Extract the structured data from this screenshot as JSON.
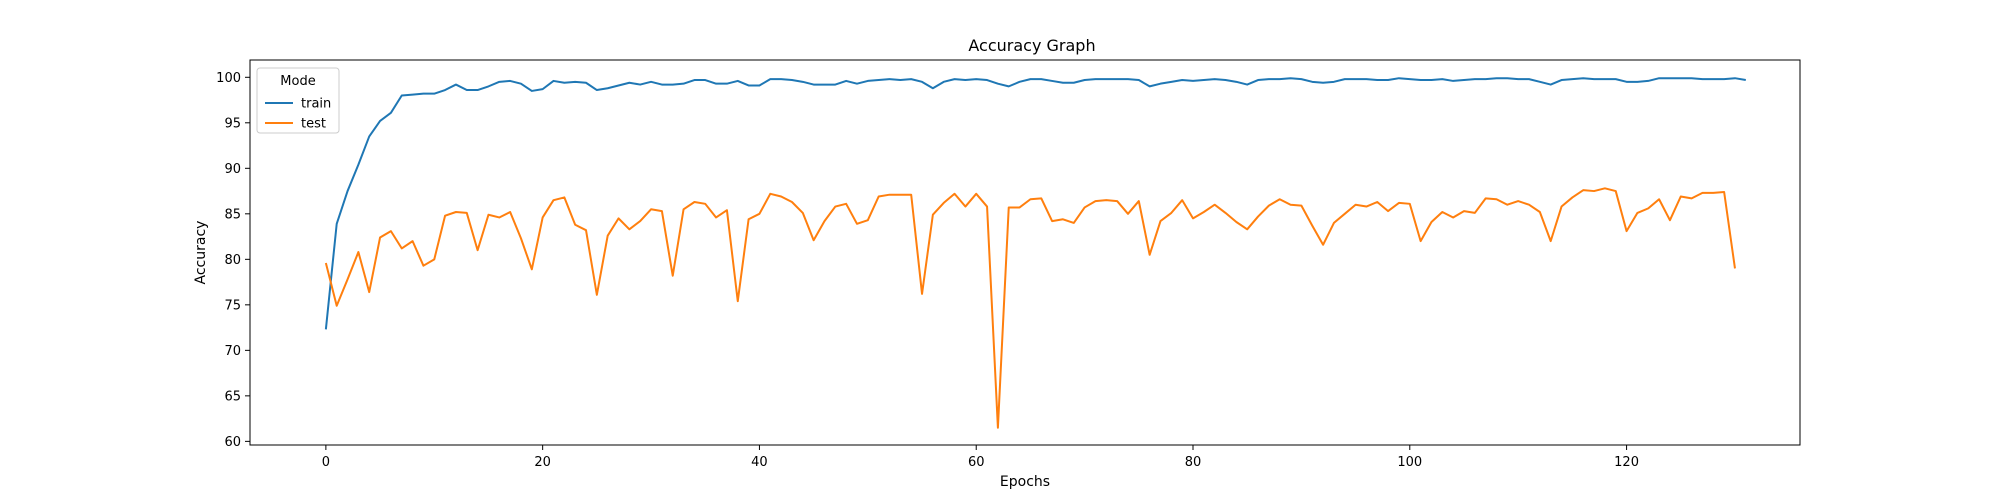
{
  "chart_data": {
    "type": "line",
    "title": "Accuracy Graph",
    "xlabel": "Epochs",
    "ylabel": "Accuracy",
    "xlim": [
      -7,
      136
    ],
    "ylim": [
      59.6,
      101.9
    ],
    "xticks": [
      0,
      20,
      40,
      60,
      80,
      100,
      120
    ],
    "yticks": [
      60,
      65,
      70,
      75,
      80,
      85,
      90,
      95,
      100
    ],
    "grid": false,
    "legend": {
      "title": "Mode",
      "placement": "upper-left"
    },
    "series": [
      {
        "name": "train",
        "color": "#1f77b4",
        "values": [
          72.3,
          83.9,
          87.5,
          90.4,
          93.5,
          95.2,
          96.1,
          98.0,
          98.1,
          98.2,
          98.2,
          98.6,
          99.2,
          98.6,
          98.6,
          99.0,
          99.5,
          99.6,
          99.3,
          98.5,
          98.7,
          99.6,
          99.4,
          99.5,
          99.4,
          98.6,
          98.8,
          99.1,
          99.4,
          99.2,
          99.5,
          99.2,
          99.2,
          99.3,
          99.7,
          99.7,
          99.3,
          99.3,
          99.6,
          99.1,
          99.1,
          99.8,
          99.8,
          99.7,
          99.5,
          99.2,
          99.2,
          99.2,
          99.6,
          99.3,
          99.6,
          99.7,
          99.8,
          99.7,
          99.8,
          99.5,
          98.8,
          99.5,
          99.8,
          99.7,
          99.8,
          99.7,
          99.3,
          99.0,
          99.5,
          99.8,
          99.8,
          99.6,
          99.4,
          99.4,
          99.7,
          99.8,
          99.8,
          99.8,
          99.8,
          99.7,
          99.0,
          99.3,
          99.5,
          99.7,
          99.6,
          99.7,
          99.8,
          99.7,
          99.5,
          99.2,
          99.7,
          99.8,
          99.8,
          99.9,
          99.8,
          99.5,
          99.4,
          99.5,
          99.8,
          99.8,
          99.8,
          99.7,
          99.7,
          99.9,
          99.8,
          99.7,
          99.7,
          99.8,
          99.6,
          99.7,
          99.8,
          99.8,
          99.9,
          99.9,
          99.8,
          99.8,
          99.5,
          99.2,
          99.7,
          99.8,
          99.9,
          99.8,
          99.8,
          99.8,
          99.5,
          99.5,
          99.6,
          99.9,
          99.9,
          99.9,
          99.9,
          99.8,
          99.8,
          99.8,
          99.9,
          99.7
        ]
      },
      {
        "name": "test",
        "color": "#ff7f0e",
        "values": [
          79.6,
          74.9,
          77.8,
          80.8,
          76.4,
          82.4,
          83.1,
          81.2,
          82.0,
          79.3,
          80.0,
          84.8,
          85.2,
          85.1,
          81.0,
          84.9,
          84.6,
          85.2,
          82.3,
          78.9,
          84.6,
          86.5,
          86.8,
          83.8,
          83.2,
          76.1,
          82.6,
          84.5,
          83.3,
          84.2,
          85.5,
          85.3,
          78.2,
          85.5,
          86.3,
          86.1,
          84.6,
          85.4,
          75.4,
          84.4,
          85.0,
          87.2,
          86.9,
          86.3,
          85.1,
          82.1,
          84.2,
          85.8,
          86.1,
          83.9,
          84.3,
          86.9,
          87.1,
          87.1,
          87.1,
          76.2,
          84.9,
          86.2,
          87.2,
          85.8,
          87.2,
          85.8,
          61.5,
          85.7,
          85.7,
          86.6,
          86.7,
          84.2,
          84.4,
          84.0,
          85.7,
          86.4,
          86.5,
          86.4,
          85.0,
          86.4,
          80.5,
          84.2,
          85.1,
          86.5,
          84.5,
          85.2,
          86.0,
          85.1,
          84.1,
          83.3,
          84.7,
          85.9,
          86.6,
          86.0,
          85.9,
          83.7,
          81.6,
          84.0,
          85.0,
          86.0,
          85.8,
          86.3,
          85.3,
          86.2,
          86.1,
          82.0,
          84.1,
          85.2,
          84.6,
          85.3,
          85.1,
          86.7,
          86.6,
          86.0,
          86.4,
          86.0,
          85.2,
          82.0,
          85.8,
          86.8,
          87.6,
          87.5,
          87.8,
          87.5,
          83.1,
          85.1,
          85.6,
          86.6,
          84.3,
          86.9,
          86.7,
          87.3,
          87.3,
          87.4,
          79.0
        ]
      }
    ]
  }
}
